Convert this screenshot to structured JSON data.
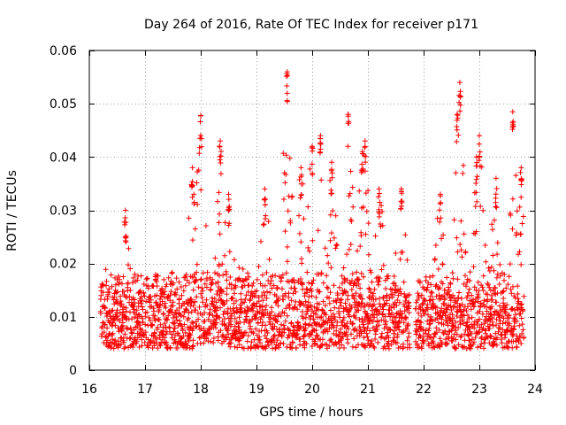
{
  "chart_data": {
    "type": "scatter",
    "title": "Day 264 of 2016, Rate Of TEC Index for receiver p171",
    "xlabel": "GPS time / hours",
    "ylabel": "ROTI / TECUs",
    "xlim": [
      16,
      24
    ],
    "ylim": [
      0,
      0.06
    ],
    "x_ticks": [
      "16",
      "17",
      "18",
      "19",
      "20",
      "21",
      "22",
      "23",
      "24"
    ],
    "y_ticks": [
      "0",
      "0.01",
      "0.02",
      "0.03",
      "0.04",
      "0.05",
      "0.06"
    ],
    "grid": true,
    "marker": "+",
    "color": "#ff0000",
    "x_range_data": [
      16.2,
      23.8
    ],
    "gap_hours": [
      21.75,
      21.85
    ],
    "typical_y_range": [
      0.004,
      0.02
    ],
    "peaks": [
      {
        "x": 16.65,
        "y": 0.03
      },
      {
        "x": 17.85,
        "y": 0.038
      },
      {
        "x": 18.0,
        "y": 0.0478
      },
      {
        "x": 18.35,
        "y": 0.043
      },
      {
        "x": 18.5,
        "y": 0.033
      },
      {
        "x": 19.15,
        "y": 0.034
      },
      {
        "x": 19.55,
        "y": 0.056
      },
      {
        "x": 19.8,
        "y": 0.038
      },
      {
        "x": 20.0,
        "y": 0.042
      },
      {
        "x": 20.15,
        "y": 0.044
      },
      {
        "x": 20.35,
        "y": 0.039
      },
      {
        "x": 20.65,
        "y": 0.048
      },
      {
        "x": 20.9,
        "y": 0.041
      },
      {
        "x": 20.95,
        "y": 0.043
      },
      {
        "x": 21.2,
        "y": 0.034
      },
      {
        "x": 21.6,
        "y": 0.034
      },
      {
        "x": 22.3,
        "y": 0.033
      },
      {
        "x": 22.6,
        "y": 0.048
      },
      {
        "x": 22.65,
        "y": 0.054
      },
      {
        "x": 22.95,
        "y": 0.04
      },
      {
        "x": 23.0,
        "y": 0.044
      },
      {
        "x": 23.3,
        "y": 0.036
      },
      {
        "x": 23.6,
        "y": 0.0485
      },
      {
        "x": 23.75,
        "y": 0.038
      }
    ]
  }
}
